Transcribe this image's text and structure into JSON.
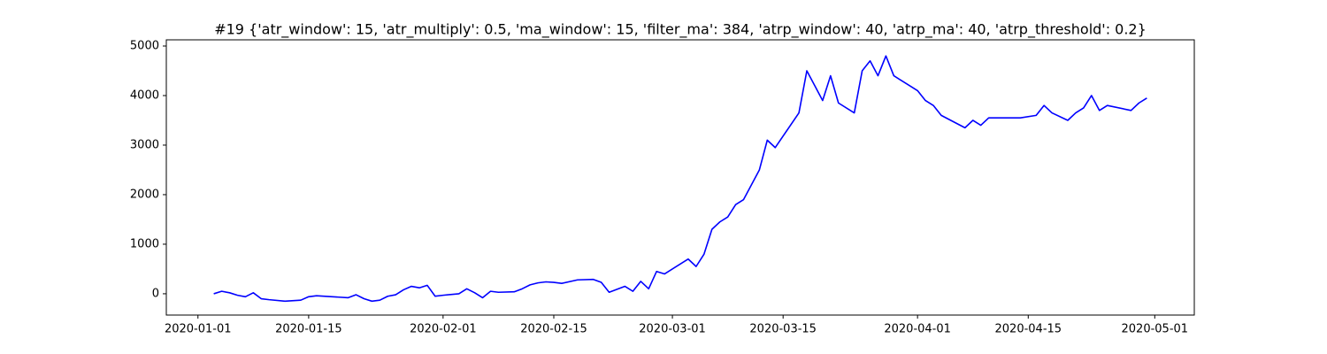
{
  "chart_data": {
    "type": "line",
    "title": "#19 {'atr_window': 15, 'atr_multiply': 0.5, 'ma_window': 15, 'filter_ma': 384, 'atrp_window': 40, 'atrp_ma': 40, 'atrp_threshold': 0.2}",
    "x": [
      "2020-01-03",
      "2020-01-04",
      "2020-01-05",
      "2020-01-06",
      "2020-01-07",
      "2020-01-08",
      "2020-01-09",
      "2020-01-10",
      "2020-01-12",
      "2020-01-14",
      "2020-01-15",
      "2020-01-16",
      "2020-01-18",
      "2020-01-20",
      "2020-01-21",
      "2020-01-22",
      "2020-01-23",
      "2020-01-24",
      "2020-01-25",
      "2020-01-26",
      "2020-01-27",
      "2020-01-28",
      "2020-01-29",
      "2020-01-30",
      "2020-01-31",
      "2020-02-01",
      "2020-02-03",
      "2020-02-04",
      "2020-02-05",
      "2020-02-06",
      "2020-02-07",
      "2020-02-08",
      "2020-02-10",
      "2020-02-11",
      "2020-02-12",
      "2020-02-13",
      "2020-02-14",
      "2020-02-15",
      "2020-02-16",
      "2020-02-18",
      "2020-02-20",
      "2020-02-21",
      "2020-02-22",
      "2020-02-24",
      "2020-02-25",
      "2020-02-26",
      "2020-02-27",
      "2020-02-28",
      "2020-02-29",
      "2020-03-03",
      "2020-03-04",
      "2020-03-05",
      "2020-03-06",
      "2020-03-07",
      "2020-03-08",
      "2020-03-09",
      "2020-03-10",
      "2020-03-11",
      "2020-03-12",
      "2020-03-13",
      "2020-03-14",
      "2020-03-17",
      "2020-03-18",
      "2020-03-19",
      "2020-03-20",
      "2020-03-21",
      "2020-03-22",
      "2020-03-24",
      "2020-03-25",
      "2020-03-26",
      "2020-03-27",
      "2020-03-28",
      "2020-03-29",
      "2020-03-31",
      "2020-04-01",
      "2020-04-02",
      "2020-04-03",
      "2020-04-04",
      "2020-04-07",
      "2020-04-08",
      "2020-04-09",
      "2020-04-10",
      "2020-04-14",
      "2020-04-16",
      "2020-04-17",
      "2020-04-18",
      "2020-04-20",
      "2020-04-21",
      "2020-04-22",
      "2020-04-23",
      "2020-04-24",
      "2020-04-25",
      "2020-04-28",
      "2020-04-29",
      "2020-04-30"
    ],
    "values": [
      0,
      50,
      20,
      -30,
      -60,
      20,
      -100,
      -120,
      -150,
      -130,
      -60,
      -40,
      -60,
      -80,
      -20,
      -100,
      -150,
      -130,
      -50,
      -20,
      80,
      150,
      120,
      170,
      -50,
      -30,
      0,
      100,
      20,
      -80,
      50,
      30,
      40,
      100,
      180,
      220,
      240,
      230,
      210,
      280,
      290,
      230,
      30,
      150,
      50,
      250,
      100,
      450,
      400,
      700,
      550,
      800,
      1300,
      1450,
      1550,
      1800,
      1900,
      2200,
      2500,
      3100,
      2950,
      3650,
      4500,
      4200,
      3900,
      4400,
      3850,
      3650,
      4500,
      4700,
      4400,
      4800,
      4400,
      4200,
      4100,
      3900,
      3800,
      3600,
      3350,
      3500,
      3400,
      3550,
      3550,
      3600,
      3800,
      3650,
      3500,
      3650,
      3750,
      4000,
      3700,
      3800,
      3700,
      3850,
      3950
    ],
    "color": "blue",
    "xlim": [
      "2019-12-28",
      "2020-05-06"
    ],
    "xticks": [
      "2020-01-01",
      "2020-01-15",
      "2020-02-01",
      "2020-02-15",
      "2020-03-01",
      "2020-03-15",
      "2020-04-01",
      "2020-04-15",
      "2020-05-01"
    ],
    "ylim": [
      -430,
      5125
    ],
    "yticks": [
      0,
      1000,
      2000,
      3000,
      4000,
      5000
    ]
  }
}
